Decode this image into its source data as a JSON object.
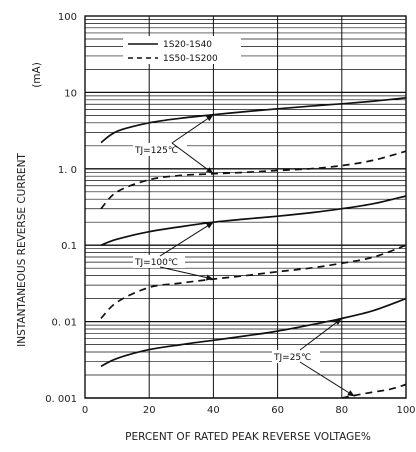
{
  "chart_data": {
    "type": "line",
    "title": "",
    "xlabel": "PERCENT OF RATED PEAK REVERSE VOLTAGE%",
    "ylabel": "INSTANTANEOUS REVERSE CURRENT",
    "yunit": "(mA)",
    "xlim": [
      0,
      100
    ],
    "ylim": [
      0.001,
      100
    ],
    "yscale": "log",
    "grid": true,
    "x_ticks": [
      "0",
      "20",
      "40",
      "60",
      "80",
      "100"
    ],
    "y_ticks": [
      "0. 001",
      "0. 01",
      "0.1",
      "1. 0",
      "10",
      "100"
    ],
    "legend": {
      "placement": "top-center",
      "entries": [
        {
          "label": "1S20-1S40",
          "style": "solid"
        },
        {
          "label": "1S50-1S200",
          "style": "dashed"
        }
      ]
    },
    "series": [
      {
        "name": "1S20-1S40",
        "group": "TJ=125℃",
        "style": "solid",
        "x": [
          5,
          10,
          20,
          30,
          40,
          50,
          60,
          70,
          80,
          90,
          100
        ],
        "y": [
          2.2,
          3.1,
          4.0,
          4.6,
          5.1,
          5.6,
          6.1,
          6.6,
          7.1,
          7.7,
          8.5
        ]
      },
      {
        "name": "1S50-1S200",
        "group": "TJ=125℃",
        "style": "dashed",
        "x": [
          5,
          10,
          20,
          30,
          40,
          50,
          60,
          70,
          80,
          90,
          100
        ],
        "y": [
          0.3,
          0.5,
          0.72,
          0.82,
          0.86,
          0.9,
          0.95,
          1.0,
          1.1,
          1.3,
          1.7
        ]
      },
      {
        "name": "1S20-1S40",
        "group": "TJ=100℃",
        "style": "solid",
        "x": [
          5,
          10,
          20,
          30,
          40,
          50,
          60,
          70,
          80,
          90,
          100
        ],
        "y": [
          0.1,
          0.12,
          0.15,
          0.175,
          0.2,
          0.22,
          0.24,
          0.265,
          0.3,
          0.35,
          0.44
        ]
      },
      {
        "name": "1S50-1S200",
        "group": "TJ=100℃",
        "style": "dashed",
        "x": [
          5,
          10,
          20,
          30,
          40,
          50,
          60,
          70,
          80,
          90,
          100
        ],
        "y": [
          0.011,
          0.018,
          0.028,
          0.032,
          0.036,
          0.04,
          0.045,
          0.05,
          0.058,
          0.07,
          0.1
        ]
      },
      {
        "name": "1S20-1S40",
        "group": "TJ=25℃",
        "style": "solid",
        "x": [
          5,
          10,
          20,
          30,
          40,
          50,
          60,
          70,
          80,
          90,
          100
        ],
        "y": [
          0.0026,
          0.0033,
          0.0043,
          0.005,
          0.0057,
          0.0065,
          0.0075,
          0.009,
          0.011,
          0.014,
          0.02
        ]
      },
      {
        "name": "1S50-1S200",
        "group": "TJ=25℃",
        "style": "dashed",
        "x": [
          80,
          85,
          90,
          95,
          100
        ],
        "y": [
          0.001,
          0.0011,
          0.0012,
          0.0013,
          0.0015
        ]
      }
    ],
    "annotations": [
      {
        "text": "TJ=125℃",
        "arrows_to": [
          [
            40,
            5.1
          ],
          [
            40,
            0.86
          ]
        ]
      },
      {
        "text": "TJ=100℃",
        "arrows_to": [
          [
            40,
            0.2
          ],
          [
            40,
            0.036
          ]
        ]
      },
      {
        "text": "TJ=25℃",
        "arrows_to": [
          [
            80,
            0.011
          ],
          [
            84,
            0.00105
          ]
        ]
      }
    ]
  }
}
